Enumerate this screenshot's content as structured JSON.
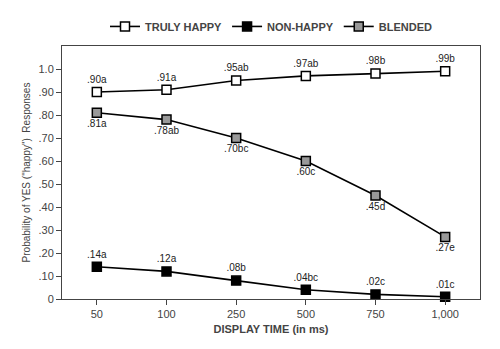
{
  "chart_data": {
    "type": "line",
    "xlabel": "DISPLAY TIME (in ms)",
    "ylabel": "Probability of YES (\"happy\")  Responses",
    "categories": [
      "50",
      "100",
      "250",
      "500",
      "750",
      "1,000"
    ],
    "series": [
      {
        "name": "TRULY HAPPY",
        "color": "#ffffff",
        "values": [
          0.9,
          0.91,
          0.95,
          0.97,
          0.98,
          0.99
        ],
        "value_labels": [
          ".90a",
          ".91a",
          ".95ab",
          ".97ab",
          ".98b",
          ".99b"
        ]
      },
      {
        "name": "NON-HAPPY",
        "color": "#000000",
        "values": [
          0.14,
          0.12,
          0.08,
          0.04,
          0.02,
          0.01
        ],
        "value_labels": [
          ".14a",
          ".12a",
          ".08b",
          ".04bc",
          ".02c",
          ".01c"
        ]
      },
      {
        "name": "BLENDED",
        "color": "#999999",
        "values": [
          0.81,
          0.78,
          0.7,
          0.6,
          0.45,
          0.27
        ],
        "value_labels": [
          ".81a",
          ".78ab",
          ".70bc",
          ".60c",
          ".45d",
          ".27e"
        ]
      }
    ],
    "color": "#000000",
    "marker": "square",
    "data_labels": true,
    "ylim": [
      0,
      1.1
    ],
    "yticks": [
      0,
      {
        "value": 0.1,
        "label": ".10"
      },
      {
        "value": 0.2,
        "label": ".20"
      },
      {
        "value": 0.3,
        "label": ".30"
      },
      {
        "value": 0.4,
        "label": ".40"
      },
      {
        "value": 0.5,
        "label": ".50"
      },
      {
        "value": 0.6,
        "label": ".60"
      },
      {
        "value": 0.7,
        "label": ".70"
      },
      {
        "value": 0.8,
        "label": ".80"
      },
      {
        "value": 0.9,
        "label": ".90"
      },
      {
        "value": 1.0,
        "label": "1.0"
      }
    ],
    "grid": false,
    "legend": "top"
  }
}
